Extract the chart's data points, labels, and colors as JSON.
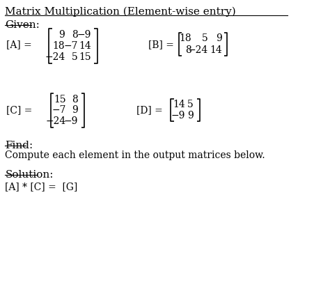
{
  "title": "Matrix Multiplication (Element-wise entry)",
  "bg_color": "#ffffff",
  "text_color": "#000000",
  "font_size_title": 11,
  "font_size_body": 10,
  "font_size_matrix": 10,
  "given_label": "Given:",
  "find_label": "Find:",
  "find_text": "Compute each element in the output matrices below.",
  "solution_label": "Solution:",
  "solution_text": "[A] * [C] =  [G]",
  "A_data": [
    [
      9,
      8,
      -9
    ],
    [
      18,
      -7,
      14
    ],
    [
      -24,
      5,
      15
    ]
  ],
  "B_data": [
    [
      18,
      5,
      9
    ],
    [
      8,
      -24,
      14
    ]
  ],
  "C_data": [
    [
      15,
      8
    ],
    [
      -7,
      9
    ],
    [
      -24,
      -9
    ]
  ],
  "D_data": [
    [
      14,
      5
    ],
    [
      -9,
      9
    ]
  ]
}
